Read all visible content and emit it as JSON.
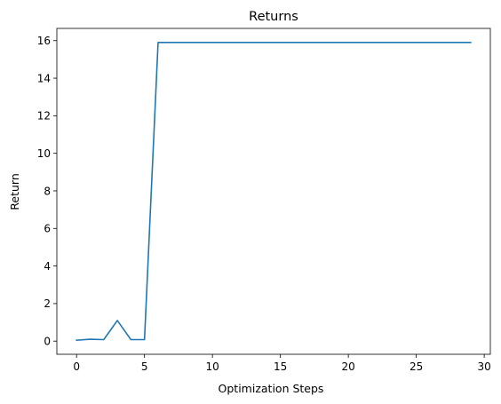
{
  "chart_data": {
    "type": "line",
    "title": "Returns",
    "xlabel": "Optimization Steps",
    "ylabel": "Return",
    "xlim": [
      -1.45,
      30.45
    ],
    "ylim": [
      -0.7,
      16.65
    ],
    "x_ticks": [
      0,
      5,
      10,
      15,
      20,
      25,
      30
    ],
    "y_ticks": [
      0,
      2,
      4,
      6,
      8,
      10,
      12,
      14,
      16
    ],
    "grid": false,
    "series": [
      {
        "color": "#1f77b4",
        "x": [
          0,
          1,
          2,
          3,
          4,
          5,
          6,
          7,
          8,
          9,
          10,
          11,
          12,
          13,
          14,
          15,
          16,
          17,
          18,
          19,
          20,
          21,
          22,
          23,
          24,
          25,
          26,
          27,
          28,
          29
        ],
        "y": [
          0.05,
          0.1,
          0.08,
          1.1,
          0.08,
          0.08,
          15.9,
          15.9,
          15.9,
          15.9,
          15.9,
          15.9,
          15.9,
          15.9,
          15.9,
          15.9,
          15.9,
          15.9,
          15.9,
          15.9,
          15.9,
          15.9,
          15.9,
          15.9,
          15.9,
          15.9,
          15.9,
          15.9,
          15.9,
          15.9
        ]
      }
    ]
  }
}
